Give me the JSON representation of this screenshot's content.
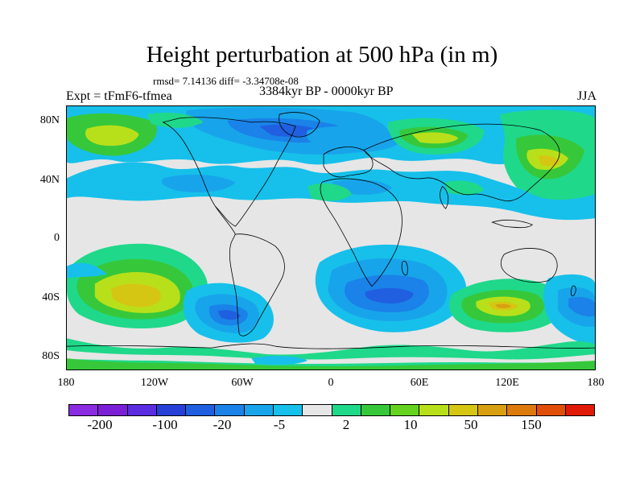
{
  "title": "Height perturbation at 500 hPa (in m)",
  "stats": "rmsd= 7.14136 diff= -3.34708e-08",
  "expt": "Expt = tFmF6-tfmea",
  "period": "3384kyr BP - 0000kyr BP",
  "season": "JJA",
  "lat_labels": [
    "80N",
    "40N",
    "0",
    "40S",
    "80S"
  ],
  "lon_labels": [
    "180",
    "120W",
    "60W",
    "0",
    "60E",
    "120E",
    "180"
  ],
  "colorbar": {
    "colors": [
      "#8a2be2",
      "#7b1fd6",
      "#5b2ce0",
      "#2640d8",
      "#1f5fe0",
      "#1a82e8",
      "#18a4ea",
      "#16c0ea",
      "#e6e6e6",
      "#1fd88a",
      "#36c83a",
      "#64d21e",
      "#b8e01a",
      "#d6c614",
      "#d8a010",
      "#dd7a0c",
      "#e14e0a",
      "#e01a08"
    ],
    "labels": [
      "-200",
      "-100",
      "-20",
      "-5",
      "2",
      "10",
      "50",
      "150"
    ]
  },
  "map_colors": {
    "neutral": "#e6e6e6",
    "light_green": "#1fd88a",
    "green": "#36c83a",
    "yellowgreen": "#b8e01a",
    "yellow": "#d6c614",
    "orange": "#d8a010",
    "light_blue": "#16c0ea",
    "sky_blue": "#18a4ea",
    "blue": "#1a82e8",
    "mid_blue": "#1f5fe0",
    "dark_blue": "#2640d8"
  }
}
